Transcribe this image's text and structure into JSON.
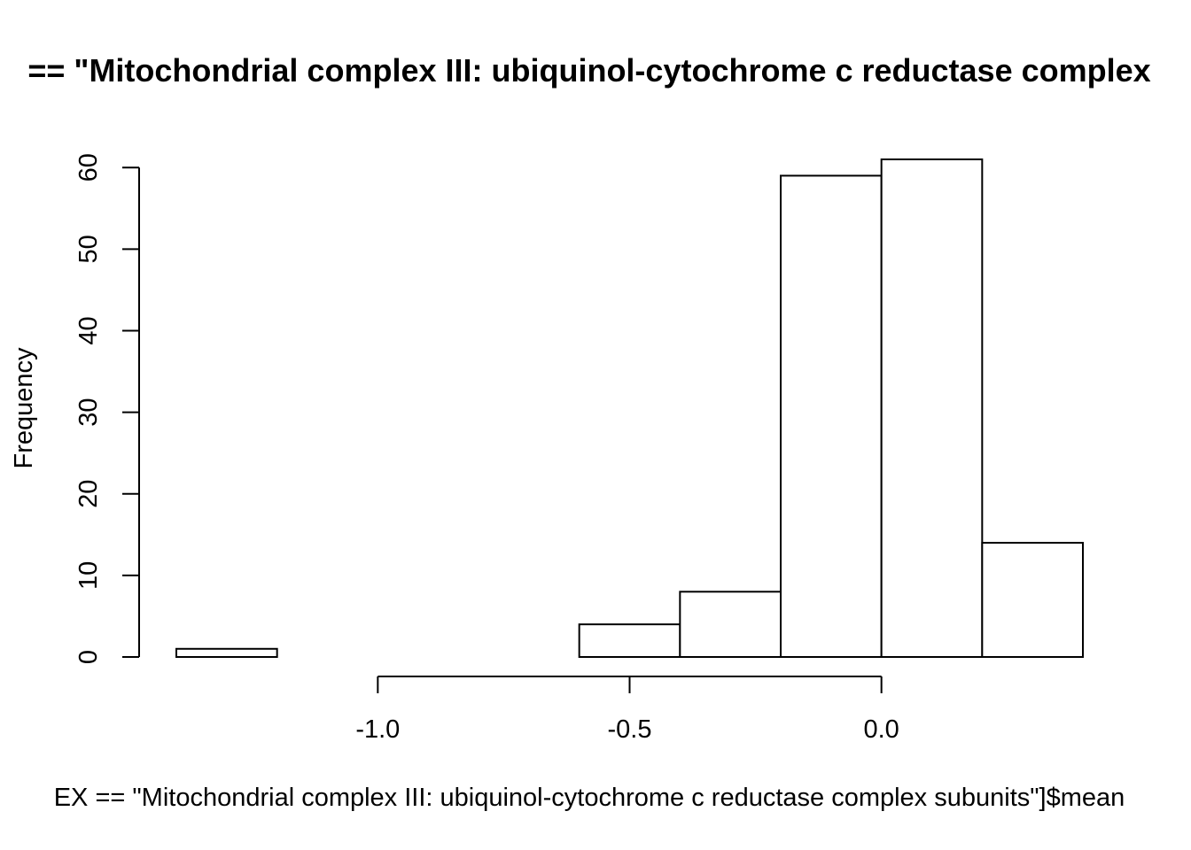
{
  "chart_data": {
    "type": "bar",
    "title": "== \"Mitochondrial complex III: ubiquinol-cytochrome c reductase complex",
    "xlabel": "EX == \"Mitochondrial complex III: ubiquinol-cytochrome c reductase complex subunits\"]$mean",
    "ylabel": "Frequency",
    "bins": [
      {
        "x0": -1.4,
        "x1": -1.2,
        "count": 1
      },
      {
        "x0": -1.2,
        "x1": -1.0,
        "count": 0
      },
      {
        "x0": -1.0,
        "x1": -0.8,
        "count": 0
      },
      {
        "x0": -0.8,
        "x1": -0.6,
        "count": 0
      },
      {
        "x0": -0.6,
        "x1": -0.4,
        "count": 4
      },
      {
        "x0": -0.4,
        "x1": -0.2,
        "count": 8
      },
      {
        "x0": -0.2,
        "x1": 0.0,
        "count": 59
      },
      {
        "x0": 0.0,
        "x1": 0.2,
        "count": 61
      },
      {
        "x0": 0.2,
        "x1": 0.4,
        "count": 14
      }
    ],
    "xlim": [
      -1.4,
      0.4
    ],
    "ylim": [
      0,
      61
    ],
    "x_ticks": [
      -1.0,
      -0.5,
      0.0
    ],
    "x_tick_labels": [
      "-1.0",
      "-0.5",
      "0.0"
    ],
    "y_ticks": [
      0,
      10,
      20,
      30,
      40,
      50,
      60
    ],
    "y_tick_labels": [
      "0",
      "10",
      "20",
      "30",
      "40",
      "50",
      "60"
    ],
    "grid": false,
    "legend": "none",
    "bar_fill": "#ffffff",
    "bar_stroke": "#000000"
  }
}
